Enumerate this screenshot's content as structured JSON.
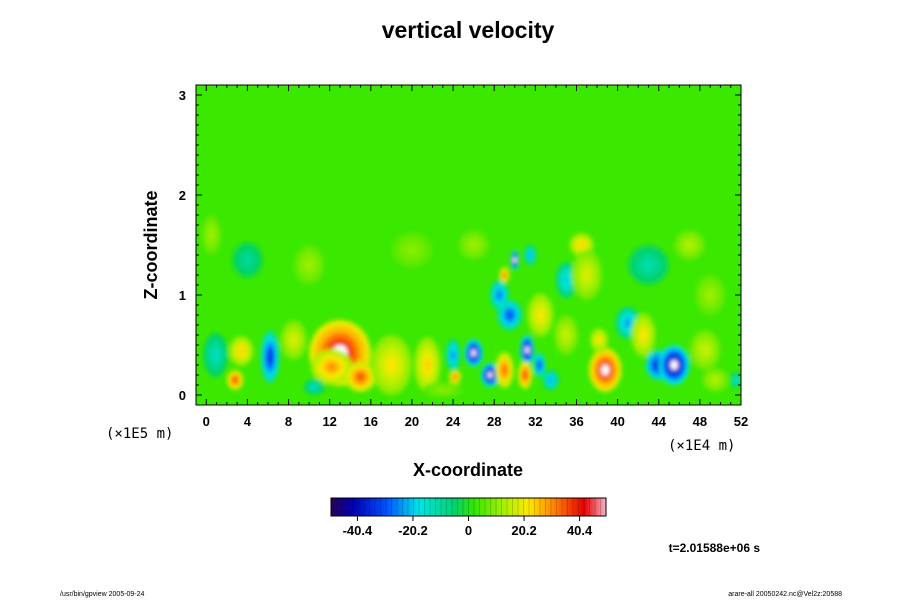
{
  "chart_data": {
    "type": "heatmap",
    "title": "vertical velocity",
    "xlabel": "X-coordinate",
    "ylabel": "Z-coordinate",
    "x_scale_note": "(×1E4 m)",
    "y_scale_note": "(×1E5 m)",
    "xlim": [
      -1,
      52
    ],
    "ylim": [
      -0.1,
      3.1
    ],
    "x_ticks": [
      "0",
      "4",
      "8",
      "12",
      "16",
      "20",
      "24",
      "28",
      "32",
      "36",
      "40",
      "44",
      "48",
      "52"
    ],
    "y_ticks": [
      "0",
      "1",
      "2",
      "3"
    ],
    "colorbar": {
      "range": [
        -50,
        50
      ],
      "tick_labels": [
        "-40.4",
        "-20.2",
        "0",
        "20.2",
        "40.4"
      ],
      "tick_values": [
        -40.4,
        -20.2,
        0,
        20.2,
        40.4
      ]
    },
    "time_label": "t=2.01588e+06 s",
    "background_value": 2,
    "features": [
      {
        "x": 13.0,
        "z": 0.42,
        "rx": 3.0,
        "rz": 0.33,
        "value": 46
      },
      {
        "x": 12.2,
        "z": 0.28,
        "rx": 2.0,
        "rz": 0.18,
        "value": 30
      },
      {
        "x": 15.0,
        "z": 0.18,
        "rx": 1.5,
        "rz": 0.15,
        "value": 36
      },
      {
        "x": 2.8,
        "z": 0.15,
        "rx": 0.8,
        "rz": 0.1,
        "value": 38
      },
      {
        "x": 3.4,
        "z": 0.44,
        "rx": 1.2,
        "rz": 0.15,
        "value": 24
      },
      {
        "x": 6.2,
        "z": 0.38,
        "rx": 0.9,
        "rz": 0.26,
        "value": -36
      },
      {
        "x": 0.9,
        "z": 0.4,
        "rx": 1.2,
        "rz": 0.22,
        "value": -14
      },
      {
        "x": 8.5,
        "z": 0.55,
        "rx": 1.3,
        "rz": 0.2,
        "value": 18
      },
      {
        "x": 10.5,
        "z": 0.08,
        "rx": 1.0,
        "rz": 0.08,
        "value": -14
      },
      {
        "x": 18.0,
        "z": 0.3,
        "rx": 2.0,
        "rz": 0.3,
        "value": 22
      },
      {
        "x": 21.5,
        "z": 0.3,
        "rx": 1.3,
        "rz": 0.28,
        "value": 24
      },
      {
        "x": 23.0,
        "z": 0.05,
        "rx": 2.0,
        "rz": 0.08,
        "value": 10
      },
      {
        "x": 24.2,
        "z": 0.18,
        "rx": 0.6,
        "rz": 0.07,
        "value": 34
      },
      {
        "x": 24.0,
        "z": 0.4,
        "rx": 0.7,
        "rz": 0.16,
        "value": -26
      },
      {
        "x": 26.0,
        "z": 0.42,
        "rx": 0.9,
        "rz": 0.14,
        "value": -46
      },
      {
        "x": 27.6,
        "z": 0.2,
        "rx": 0.9,
        "rz": 0.12,
        "value": -48
      },
      {
        "x": 29.0,
        "z": 0.25,
        "rx": 0.9,
        "rz": 0.18,
        "value": 34
      },
      {
        "x": 29.5,
        "z": 0.8,
        "rx": 1.2,
        "rz": 0.15,
        "value": -32
      },
      {
        "x": 28.5,
        "z": 1.0,
        "rx": 0.9,
        "rz": 0.15,
        "value": -28
      },
      {
        "x": 31.2,
        "z": 0.45,
        "rx": 0.7,
        "rz": 0.15,
        "value": -48
      },
      {
        "x": 31.0,
        "z": 0.2,
        "rx": 0.7,
        "rz": 0.14,
        "value": 38
      },
      {
        "x": 32.4,
        "z": 0.3,
        "rx": 0.6,
        "rz": 0.12,
        "value": -34
      },
      {
        "x": 32.5,
        "z": 0.8,
        "rx": 1.3,
        "rz": 0.22,
        "value": 22
      },
      {
        "x": 33.5,
        "z": 0.15,
        "rx": 0.8,
        "rz": 0.1,
        "value": -24
      },
      {
        "x": 30.0,
        "z": 1.35,
        "rx": 0.4,
        "rz": 0.1,
        "value": -48
      },
      {
        "x": 31.5,
        "z": 1.4,
        "rx": 0.6,
        "rz": 0.1,
        "value": -24
      },
      {
        "x": 29.0,
        "z": 1.2,
        "rx": 0.5,
        "rz": 0.08,
        "value": 34
      },
      {
        "x": 35.0,
        "z": 1.15,
        "rx": 1.0,
        "rz": 0.18,
        "value": -20
      },
      {
        "x": 36.5,
        "z": 1.5,
        "rx": 1.2,
        "rz": 0.12,
        "value": 24
      },
      {
        "x": 37.0,
        "z": 1.2,
        "rx": 1.5,
        "rz": 0.25,
        "value": 18
      },
      {
        "x": 35.0,
        "z": 0.6,
        "rx": 1.2,
        "rz": 0.2,
        "value": 16
      },
      {
        "x": 38.8,
        "z": 0.25,
        "rx": 1.6,
        "rz": 0.22,
        "value": 44
      },
      {
        "x": 38.2,
        "z": 0.55,
        "rx": 0.9,
        "rz": 0.12,
        "value": 22
      },
      {
        "x": 41.0,
        "z": 0.72,
        "rx": 1.2,
        "rz": 0.16,
        "value": -24
      },
      {
        "x": 42.5,
        "z": 0.6,
        "rx": 1.2,
        "rz": 0.22,
        "value": 22
      },
      {
        "x": 44.0,
        "z": 0.3,
        "rx": 1.3,
        "rz": 0.15,
        "value": -40
      },
      {
        "x": 45.5,
        "z": 0.3,
        "rx": 1.5,
        "rz": 0.2,
        "value": -48
      },
      {
        "x": 48.5,
        "z": 0.45,
        "rx": 1.5,
        "rz": 0.2,
        "value": 16
      },
      {
        "x": 49.5,
        "z": 0.15,
        "rx": 1.3,
        "rz": 0.12,
        "value": 14
      },
      {
        "x": 51.5,
        "z": 0.15,
        "rx": 0.5,
        "rz": 0.08,
        "value": -18
      },
      {
        "x": 4.0,
        "z": 1.35,
        "rx": 1.5,
        "rz": 0.18,
        "value": -10
      },
      {
        "x": 10.0,
        "z": 1.3,
        "rx": 1.5,
        "rz": 0.2,
        "value": 12
      },
      {
        "x": 20.0,
        "z": 1.45,
        "rx": 2.0,
        "rz": 0.18,
        "value": 10
      },
      {
        "x": 43.0,
        "z": 1.3,
        "rx": 2.0,
        "rz": 0.2,
        "value": -12
      },
      {
        "x": 47.0,
        "z": 1.5,
        "rx": 1.5,
        "rz": 0.15,
        "value": 14
      },
      {
        "x": 49.0,
        "z": 1.0,
        "rx": 1.5,
        "rz": 0.2,
        "value": 12
      },
      {
        "x": 0.5,
        "z": 1.6,
        "rx": 1.0,
        "rz": 0.2,
        "value": 12
      },
      {
        "x": 26.0,
        "z": 1.5,
        "rx": 1.5,
        "rz": 0.15,
        "value": 12
      }
    ]
  },
  "footer": {
    "left": "/usr/bin/gpview 2005-09-24",
    "right": "arare-all 20050242.nc@Vel2z:20588"
  }
}
